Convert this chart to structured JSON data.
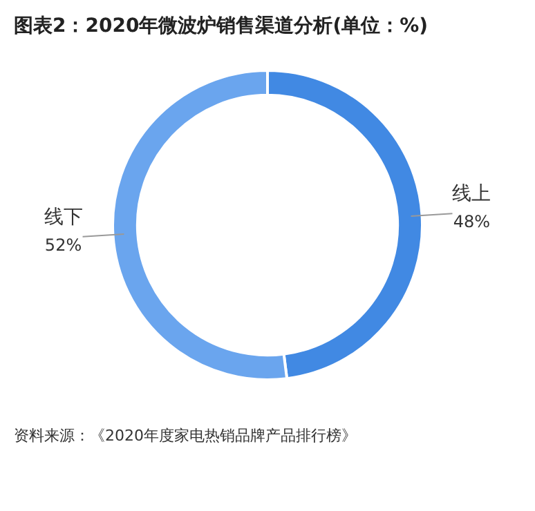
{
  "chart_data": {
    "type": "donut",
    "title": "图表2：2020年微波炉销售渠道分析(单位：%)",
    "categories": [
      "线上",
      "线下"
    ],
    "values": [
      48,
      52
    ],
    "colors": [
      "#4189e3",
      "#6aa5ee"
    ],
    "value_labels": [
      "48%",
      "52%"
    ],
    "legend": false,
    "annotations": [
      "资料来源：《2020年度家电热销品牌产品排行榜》"
    ]
  }
}
